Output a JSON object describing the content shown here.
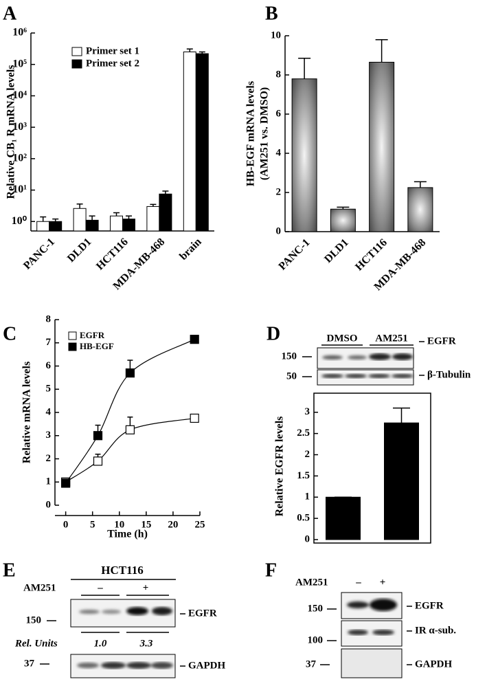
{
  "chart_data": [
    {
      "type": "bar",
      "panel": "A",
      "ylabel": "Relative CB₁ R mRNA levels",
      "categories": [
        "PANC-1",
        "DLD1",
        "HCT116",
        "MDA-MB-468",
        "brain"
      ],
      "series": [
        {
          "name": "Primer set 1",
          "color": "#ffffff",
          "values": [
            1.0,
            2.6,
            1.5,
            3.0,
            250000
          ],
          "errors": [
            0.4,
            1.0,
            0.4,
            0.5,
            60000
          ]
        },
        {
          "name": "Primer set 2",
          "color": "#000000",
          "values": [
            1.0,
            1.1,
            1.2,
            7.5,
            220000
          ],
          "errors": [
            0.2,
            0.4,
            0.3,
            1.8,
            30000
          ]
        }
      ],
      "log_scale": true,
      "ylim": [
        0.5,
        1000000
      ],
      "yticks": [
        {
          "value": 1,
          "label": "10⁰"
        },
        {
          "value": 10,
          "label": "10¹"
        },
        {
          "value": 100,
          "label": "10²"
        },
        {
          "value": 1000,
          "label": "10³"
        },
        {
          "value": 10000,
          "label": "10⁴"
        },
        {
          "value": 100000,
          "label": "10⁵"
        },
        {
          "value": 1000000,
          "label": "10⁶"
        }
      ],
      "legend": "upper-left"
    },
    {
      "type": "bar",
      "panel": "B",
      "ylabel": [
        "HB-EGF mRNA levels",
        "(AM251 vs. DMSO)"
      ],
      "categories": [
        "PANC-1",
        "DLD1",
        "HCT116",
        "MDA-MB-468"
      ],
      "values": [
        7.8,
        1.15,
        8.65,
        2.25
      ],
      "errors": [
        1.05,
        0.1,
        1.15,
        0.3
      ],
      "color": "#7a7a7a",
      "ylim": [
        0,
        10
      ],
      "yticks": [
        0,
        2,
        4,
        6,
        8,
        10
      ]
    },
    {
      "type": "line",
      "panel": "C",
      "xlabel": "Time (h)",
      "ylabel": "Relative mRNA levels",
      "x": [
        0,
        6,
        12,
        24
      ],
      "series": [
        {
          "name": "EGFR",
          "color": "#ffffff",
          "values": [
            1.0,
            1.9,
            3.25,
            3.75
          ],
          "errors": [
            0.1,
            0.3,
            0.55,
            0.1
          ]
        },
        {
          "name": "HB-EGF",
          "color": "#000000",
          "values": [
            0.95,
            3.0,
            5.7,
            7.15
          ],
          "errors": [
            0.05,
            0.45,
            0.55,
            0.05
          ]
        }
      ],
      "xlim": [
        -2,
        25
      ],
      "xticks": [
        0,
        5,
        10,
        15,
        20,
        25
      ],
      "ylim": [
        0,
        8
      ],
      "yticks": [
        0,
        1,
        2,
        3,
        4,
        5,
        6,
        7,
        8
      ],
      "legend": "upper-left"
    },
    {
      "type": "bar",
      "panel": "D",
      "ylabel": "Relative EGFR levels",
      "categories": [
        null,
        null
      ],
      "values": [
        1,
        2.75
      ],
      "errors": [
        0,
        0.35
      ],
      "color": "#000000",
      "ylim": [
        0,
        3.45
      ],
      "yticks": [
        0,
        0.5,
        1,
        1.5,
        2,
        2.5,
        3
      ]
    }
  ],
  "blots": {
    "D": {
      "panel": "D",
      "groups": [
        "DMSO",
        "AM251"
      ],
      "rows": [
        {
          "size": 150,
          "label": "EGFR"
        },
        {
          "size": 50,
          "label": "β-Tubulin"
        }
      ]
    },
    "E": {
      "panel": "E",
      "cell_line": "HCT116",
      "treatment": "AM251",
      "lanes": [
        "–",
        "+"
      ],
      "rows": [
        {
          "size": 150,
          "label": "EGFR"
        },
        {
          "size": 37,
          "label": "GAPDH"
        }
      ],
      "quant_label": "Rel. Units",
      "quant": [
        "1.0",
        "3.3"
      ]
    },
    "F": {
      "panel": "F",
      "treatment": "AM251",
      "lanes": [
        "–",
        "+"
      ],
      "rows": [
        {
          "size": 150,
          "label": "EGFR"
        },
        {
          "size": 100,
          "label": "IR α-sub."
        },
        {
          "size": 37,
          "label": "GAPDH"
        }
      ]
    }
  }
}
